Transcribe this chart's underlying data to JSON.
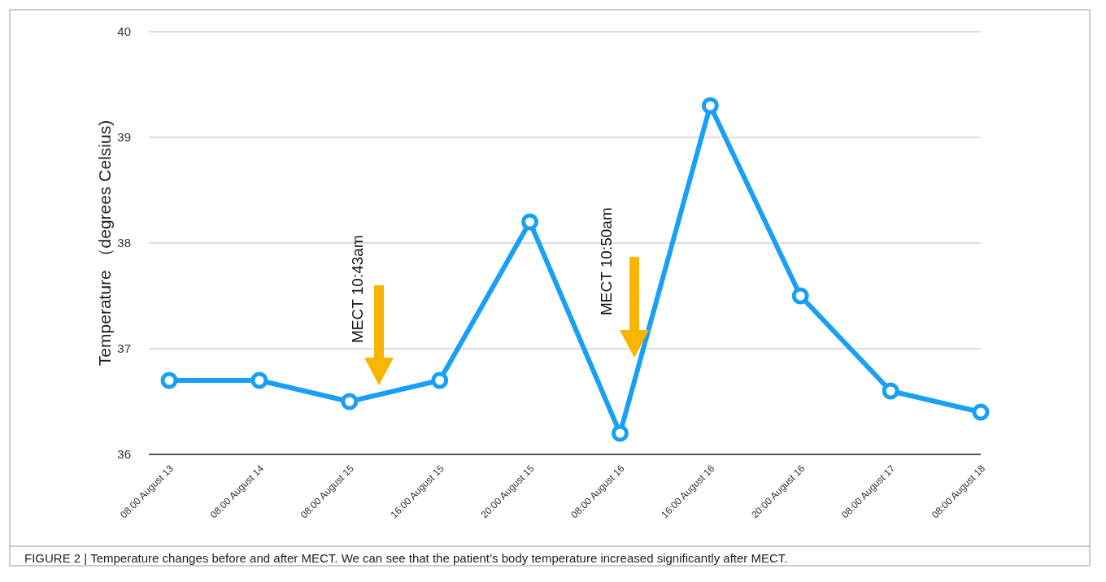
{
  "chart_data": {
    "type": "line",
    "ylabel": "Temperature （degrees Celsius)",
    "categories": [
      "08:00 August 13",
      "08:00 August 14",
      "08:00 August 15",
      "16:00 August 15",
      "20:00 August 15",
      "08:00 August 16",
      "16:00 August 16",
      "20:00 August 16",
      "08:00 August 17",
      "08:00 August 18"
    ],
    "series": [
      {
        "color": "#17a0f5",
        "values": [
          36.7,
          36.7,
          36.5,
          36.7,
          38.2,
          36.2,
          39.3,
          37.5,
          36.6,
          36.4
        ]
      }
    ],
    "ylim": [
      36,
      40
    ],
    "yticks": [
      36,
      37,
      38,
      39,
      40
    ],
    "grid": "y",
    "marker": "circle",
    "line_style": "solid",
    "annotations": [
      "MECT 10:43am",
      "MECT 10:50am",
      "FIGURE 2 | Temperature changes before and after MECT. We can see that the patient’s body temperature increased significantly after MECT."
    ]
  }
}
